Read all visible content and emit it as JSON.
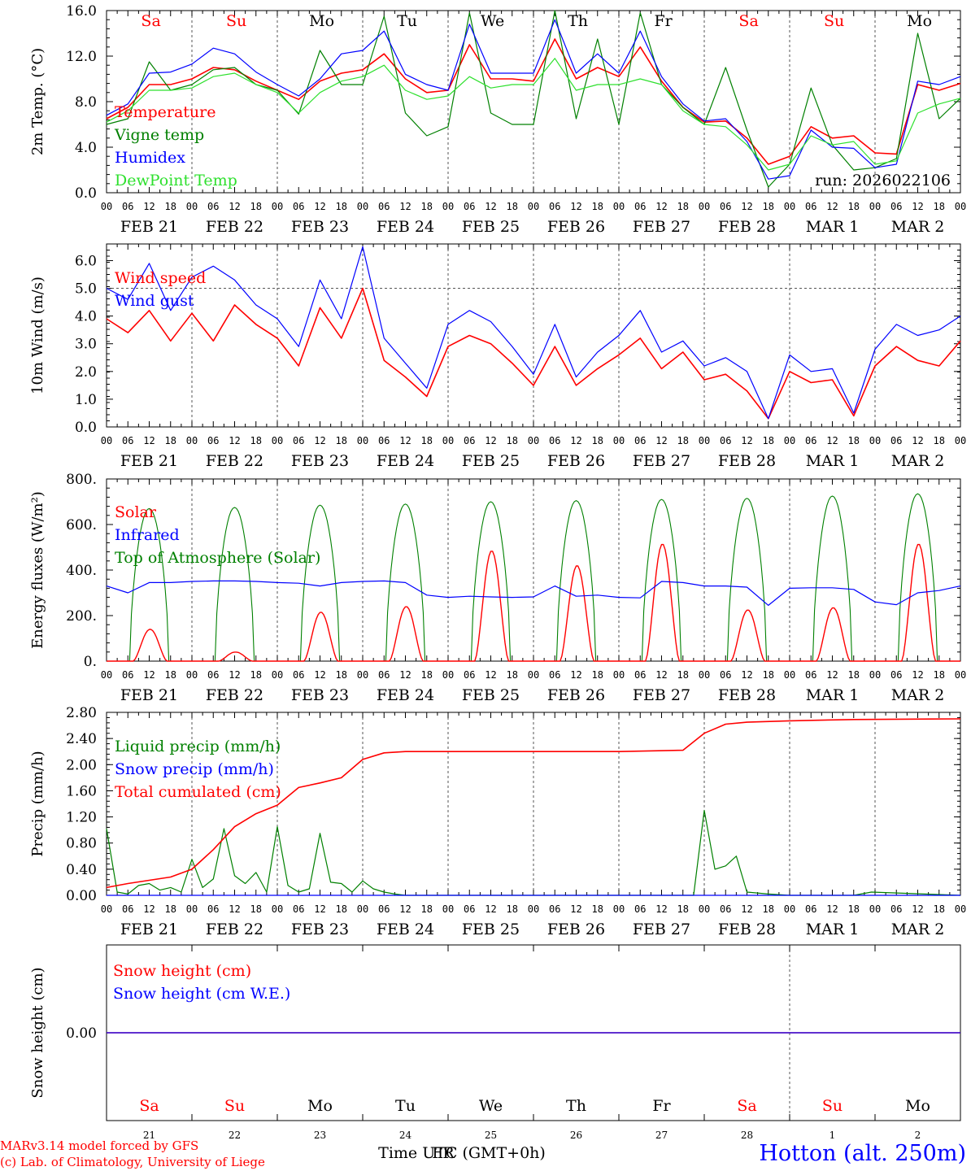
{
  "meta": {
    "run_label": "run: 2026022106",
    "credit_line1": "MARv3.14 model forced by GFS",
    "credit_line2": "(c) Lab. of Climatology, University of Liege",
    "station": "Hotton (alt. 250m)",
    "time_label": "Time UTC (GMT+0h)",
    "time_label_overlap": "FR",
    "colors": {
      "red": "#ff0000",
      "green": "#008000",
      "blue": "#0000ff",
      "lightgreen": "#2ee02e",
      "grid": "#555555"
    }
  },
  "days": {
    "dates": [
      "FEB 21",
      "FEB 22",
      "FEB 23",
      "FEB 24",
      "FEB 25",
      "FEB 26",
      "FEB 27",
      "FEB 28",
      "MAR  1",
      "MAR  2"
    ],
    "weekdays": [
      "Sa",
      "Su",
      "Mo",
      "Tu",
      "We",
      "Th",
      "Fr",
      "Sa",
      "Su",
      "Mo"
    ],
    "weekday_colors": [
      "#ff0000",
      "#ff0000",
      "#000000",
      "#000000",
      "#000000",
      "#000000",
      "#000000",
      "#ff0000",
      "#ff0000",
      "#000000"
    ],
    "day_numbers": [
      "21",
      "22",
      "23",
      "24",
      "25",
      "26",
      "27",
      "28",
      "1",
      "2"
    ],
    "hour_ticks": [
      "00",
      "06",
      "12",
      "18"
    ],
    "final_tick": "00"
  },
  "chart_data": [
    {
      "id": "temp",
      "type": "line",
      "ylabel": "2m Temp. (°C)",
      "ylim": [
        0,
        16
      ],
      "yticks": [
        "0.0",
        "4.0",
        "8.0",
        "12.0",
        "16.0"
      ],
      "x_unit": "hours since FEB 21 00 UTC",
      "legend": [
        "Temperature",
        "Vigne temp",
        "Humidex",
        "DewPoint Temp"
      ],
      "series": [
        {
          "name": "Temperature",
          "color": "#ff0000",
          "x": [
            0,
            6,
            12,
            18,
            24,
            30,
            36,
            42,
            48,
            54,
            60,
            66,
            72,
            78,
            84,
            90,
            96,
            102,
            108,
            114,
            120,
            126,
            132,
            138,
            144,
            150,
            156,
            162,
            168,
            174,
            180,
            186,
            192,
            198,
            204,
            210,
            216,
            222,
            228,
            234,
            240
          ],
          "values": [
            6.5,
            7.5,
            9.5,
            9.5,
            10.0,
            11.0,
            10.8,
            9.8,
            9.0,
            8.2,
            9.8,
            10.5,
            10.8,
            12.2,
            10.0,
            8.8,
            9.0,
            13.0,
            10.0,
            10.0,
            9.8,
            13.5,
            10.0,
            11.0,
            10.2,
            12.8,
            9.8,
            7.5,
            6.2,
            6.3,
            4.8,
            2.5,
            3.2,
            5.8,
            4.8,
            5.0,
            3.5,
            3.4,
            9.5,
            9.0,
            9.6
          ]
        },
        {
          "name": "Vigne temp",
          "color": "#008000",
          "x": [
            0,
            6,
            12,
            18,
            24,
            30,
            36,
            42,
            48,
            54,
            60,
            66,
            72,
            78,
            84,
            90,
            96,
            102,
            108,
            114,
            120,
            126,
            132,
            138,
            144,
            150,
            156,
            162,
            168,
            174,
            180,
            186,
            192,
            198,
            204,
            210,
            216,
            222,
            228,
            234,
            240
          ],
          "values": [
            6.0,
            6.5,
            11.5,
            9.0,
            9.5,
            10.8,
            11.0,
            9.5,
            9.0,
            6.9,
            12.5,
            9.5,
            9.5,
            15.5,
            7.0,
            5.0,
            5.8,
            15.8,
            7.0,
            6.0,
            6.0,
            16.0,
            6.5,
            13.5,
            6.0,
            15.8,
            9.5,
            7.5,
            6.0,
            11.0,
            5.5,
            0.5,
            2.5,
            9.2,
            4.2,
            2.0,
            2.2,
            3.0,
            14.0,
            6.5,
            8.3
          ]
        },
        {
          "name": "Humidex",
          "color": "#0000ff",
          "x": [
            0,
            6,
            12,
            18,
            24,
            30,
            36,
            42,
            48,
            54,
            60,
            66,
            72,
            78,
            84,
            90,
            96,
            102,
            108,
            114,
            120,
            126,
            132,
            138,
            144,
            150,
            156,
            162,
            168,
            174,
            180,
            186,
            192,
            198,
            204,
            210,
            216,
            222,
            228,
            234,
            240
          ],
          "values": [
            6.8,
            7.8,
            10.5,
            10.6,
            11.3,
            12.7,
            12.2,
            10.6,
            9.5,
            8.5,
            10.0,
            12.2,
            12.5,
            14.2,
            10.4,
            9.5,
            9.0,
            14.8,
            10.5,
            10.5,
            10.5,
            15.2,
            10.5,
            12.2,
            10.5,
            14.2,
            10.2,
            7.8,
            6.3,
            6.5,
            4.5,
            1.2,
            1.5,
            5.5,
            4.0,
            3.9,
            2.2,
            2.5,
            9.8,
            9.5,
            10.2
          ]
        },
        {
          "name": "DewPoint Temp",
          "color": "#2ee02e",
          "x": [
            0,
            6,
            12,
            18,
            24,
            30,
            36,
            42,
            48,
            54,
            60,
            66,
            72,
            78,
            84,
            90,
            96,
            102,
            108,
            114,
            120,
            126,
            132,
            138,
            144,
            150,
            156,
            162,
            168,
            174,
            180,
            186,
            192,
            198,
            204,
            210,
            216,
            222,
            228,
            234,
            240
          ],
          "values": [
            6.2,
            7.2,
            9.0,
            9.0,
            9.2,
            10.2,
            10.5,
            9.5,
            8.8,
            7.0,
            8.8,
            9.8,
            10.2,
            11.2,
            9.0,
            8.2,
            8.5,
            10.2,
            9.2,
            9.5,
            9.5,
            11.8,
            9.0,
            9.5,
            9.5,
            10.0,
            9.5,
            7.2,
            6.0,
            5.8,
            4.2,
            2.0,
            2.5,
            5.0,
            4.2,
            4.5,
            2.5,
            2.8,
            7.0,
            7.8,
            8.3
          ]
        }
      ]
    },
    {
      "id": "wind",
      "type": "line",
      "ylabel": "10m Wind (m/s)",
      "ylim": [
        0,
        6.6
      ],
      "yticks": [
        "0.0",
        "1.0",
        "2.0",
        "3.0",
        "4.0",
        "5.0",
        "6.0"
      ],
      "ref_line": 5.0,
      "legend": [
        "Wind speed",
        "Wind gust"
      ],
      "series": [
        {
          "name": "Wind speed",
          "color": "#ff0000",
          "x": [
            0,
            6,
            12,
            18,
            24,
            30,
            36,
            42,
            48,
            54,
            60,
            66,
            72,
            78,
            84,
            90,
            96,
            102,
            108,
            114,
            120,
            126,
            132,
            138,
            144,
            150,
            156,
            162,
            168,
            174,
            180,
            186,
            192,
            198,
            204,
            210,
            216,
            222,
            228,
            234,
            240
          ],
          "values": [
            3.9,
            3.4,
            4.2,
            3.1,
            4.1,
            3.1,
            4.4,
            3.7,
            3.2,
            2.2,
            4.3,
            3.2,
            5.0,
            2.4,
            1.8,
            1.1,
            2.9,
            3.3,
            3.0,
            2.3,
            1.5,
            2.9,
            1.5,
            2.1,
            2.6,
            3.2,
            2.1,
            2.7,
            1.7,
            1.9,
            1.3,
            0.3,
            2.0,
            1.6,
            1.7,
            0.4,
            2.2,
            2.9,
            2.4,
            2.2,
            3.1
          ]
        },
        {
          "name": "Wind gust",
          "color": "#0000ff",
          "x": [
            0,
            6,
            12,
            18,
            24,
            30,
            36,
            42,
            48,
            54,
            60,
            66,
            72,
            78,
            84,
            90,
            96,
            102,
            108,
            114,
            120,
            126,
            132,
            138,
            144,
            150,
            156,
            162,
            168,
            174,
            180,
            186,
            192,
            198,
            204,
            210,
            216,
            222,
            228,
            234,
            240
          ],
          "values": [
            5.0,
            4.6,
            5.9,
            4.2,
            5.4,
            5.8,
            5.3,
            4.4,
            3.9,
            2.9,
            5.3,
            3.9,
            6.5,
            3.2,
            2.3,
            1.4,
            3.7,
            4.2,
            3.8,
            2.9,
            1.9,
            3.7,
            1.8,
            2.7,
            3.3,
            4.2,
            2.7,
            3.1,
            2.2,
            2.5,
            2.0,
            0.3,
            2.6,
            2.0,
            2.1,
            0.5,
            2.8,
            3.7,
            3.3,
            3.5,
            4.0
          ]
        }
      ]
    },
    {
      "id": "energy",
      "type": "line",
      "ylabel": "Energy fluxes (W/m²)",
      "ylim": [
        0,
        800
      ],
      "yticks": [
        "0.",
        "200.",
        "400.",
        "600.",
        "800."
      ],
      "legend": [
        "Solar",
        "Infrared",
        "Top of Atmosphere (Solar)"
      ],
      "solar_peaks_by_day": [
        140,
        40,
        215,
        240,
        485,
        420,
        515,
        225,
        235,
        515
      ],
      "toa_peaks_by_day": [
        670,
        675,
        685,
        690,
        700,
        705,
        710,
        715,
        725,
        735
      ],
      "series": [
        {
          "name": "Infrared",
          "color": "#0000ff",
          "x": [
            0,
            6,
            12,
            18,
            24,
            30,
            36,
            42,
            48,
            54,
            60,
            66,
            72,
            78,
            84,
            90,
            96,
            102,
            108,
            114,
            120,
            126,
            132,
            138,
            144,
            150,
            156,
            162,
            168,
            174,
            180,
            186,
            192,
            198,
            204,
            210,
            216,
            222,
            228,
            234,
            240
          ],
          "values": [
            330,
            300,
            345,
            345,
            350,
            352,
            352,
            350,
            345,
            342,
            330,
            345,
            350,
            352,
            345,
            290,
            280,
            285,
            282,
            280,
            282,
            330,
            285,
            290,
            280,
            278,
            350,
            345,
            330,
            330,
            325,
            245,
            320,
            322,
            322,
            315,
            260,
            248,
            300,
            310,
            330
          ]
        }
      ]
    },
    {
      "id": "precip",
      "type": "line",
      "ylabel": "Precip (mm/h)",
      "ylim": [
        0,
        2.8
      ],
      "yticks": [
        "0.00",
        "0.40",
        "0.80",
        "1.20",
        "1.60",
        "2.00",
        "2.40",
        "2.80"
      ],
      "legend": [
        "Liquid precip (mm/h)",
        "Snow precip (mm/h)",
        "Total cumulated (cm)"
      ],
      "series": [
        {
          "name": "Liquid precip (mm/h)",
          "color": "#008000",
          "x": [
            0,
            3,
            6,
            9,
            12,
            15,
            18,
            21,
            24,
            27,
            30,
            33,
            36,
            39,
            42,
            45,
            48,
            51,
            54,
            57,
            60,
            63,
            66,
            69,
            72,
            75,
            78,
            81,
            84,
            120,
            165,
            168,
            171,
            174,
            177,
            180,
            186,
            192,
            210,
            215,
            240
          ],
          "values": [
            1.02,
            0.05,
            0.02,
            0.15,
            0.18,
            0.08,
            0.12,
            0.05,
            0.55,
            0.12,
            0.25,
            1.02,
            0.3,
            0.18,
            0.35,
            0.05,
            1.05,
            0.15,
            0.05,
            0.1,
            0.95,
            0.2,
            0.18,
            0.05,
            0.22,
            0.1,
            0.05,
            0.02,
            0.0,
            0.0,
            0.0,
            1.3,
            0.4,
            0.45,
            0.6,
            0.05,
            0.02,
            0.0,
            0.0,
            0.05,
            0.0
          ]
        },
        {
          "name": "Snow precip (mm/h)",
          "color": "#0000ff",
          "x": [
            0,
            240
          ],
          "values": [
            0.0,
            0.0
          ]
        },
        {
          "name": "Total cumulated (cm)",
          "color": "#ff0000",
          "x": [
            0,
            6,
            12,
            18,
            24,
            30,
            36,
            42,
            48,
            54,
            60,
            66,
            72,
            78,
            84,
            90,
            96,
            120,
            144,
            162,
            168,
            174,
            180,
            192,
            210,
            240
          ],
          "values": [
            0.12,
            0.18,
            0.23,
            0.28,
            0.4,
            0.7,
            1.05,
            1.25,
            1.38,
            1.65,
            1.72,
            1.8,
            2.08,
            2.18,
            2.2,
            2.2,
            2.2,
            2.2,
            2.2,
            2.22,
            2.48,
            2.62,
            2.65,
            2.67,
            2.69,
            2.7
          ]
        }
      ]
    },
    {
      "id": "snow",
      "type": "line",
      "ylabel": "Snow height (cm)",
      "yticks": [
        "0.00"
      ],
      "legend": [
        "Snow height (cm)",
        "Snow height (cm W.E.)"
      ],
      "series": [
        {
          "name": "Snow height (cm)",
          "color": "#ff0000",
          "x": [
            0,
            240
          ],
          "values": [
            0.0,
            0.0
          ]
        },
        {
          "name": "Snow height (cm W.E.)",
          "color": "#0000ff",
          "x": [
            0,
            240
          ],
          "values": [
            0.0,
            0.0
          ]
        }
      ]
    }
  ]
}
